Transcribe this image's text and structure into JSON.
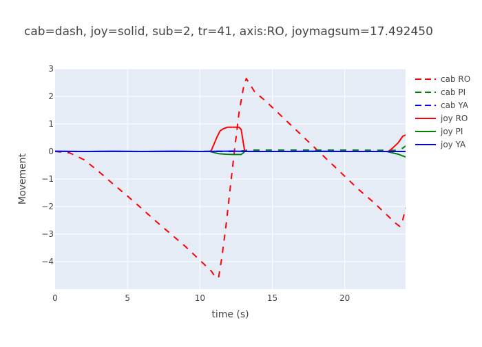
{
  "chart_data": {
    "type": "line",
    "title": "cab=dash, joy=solid, sub=2, tr=41, axis:RO, joymagsum=17.492450",
    "xlabel": "time (s)",
    "ylabel": "Movement",
    "xlim": [
      0,
      24.2
    ],
    "ylim": [
      -5,
      3
    ],
    "xticks": [
      0,
      5,
      10,
      15,
      20
    ],
    "yticks": [
      -4,
      -3,
      -2,
      -1,
      0,
      1,
      2,
      3
    ],
    "grid": true,
    "legend_position": "top-right",
    "series": [
      {
        "name": "cab RO",
        "color": "#ff0000",
        "dash": "dash",
        "x": [
          0,
          1.0,
          2.0,
          3.0,
          4.0,
          5.0,
          6.0,
          7.0,
          8.0,
          9.0,
          10.0,
          10.8,
          11.1,
          11.3,
          11.5,
          11.8,
          12.1,
          12.4,
          12.7,
          13.0,
          13.2,
          13.5,
          13.8,
          14.5,
          15.0,
          16.0,
          17.0,
          18.0,
          19.0,
          20.0,
          21.0,
          22.0,
          23.0,
          23.5,
          23.8,
          24.0,
          24.2
        ],
        "y": [
          0,
          -0.05,
          -0.3,
          -0.72,
          -1.18,
          -1.62,
          -2.08,
          -2.55,
          -3.0,
          -3.45,
          -3.95,
          -4.35,
          -4.6,
          -4.55,
          -3.9,
          -2.7,
          -1.3,
          0.1,
          1.4,
          2.3,
          2.65,
          2.4,
          2.15,
          1.85,
          1.6,
          1.1,
          0.6,
          0.1,
          -0.4,
          -0.9,
          -1.4,
          -1.85,
          -2.35,
          -2.6,
          -2.72,
          -2.5,
          -2.05
        ]
      },
      {
        "name": "cab PI",
        "color": "#008000",
        "dash": "dash",
        "x": [
          0,
          5,
          10,
          12.9,
          13.3,
          15,
          20,
          23.6,
          24.0,
          24.2
        ],
        "y": [
          0,
          0,
          0,
          0.02,
          0.05,
          0.05,
          0.05,
          0.04,
          0.12,
          0.2
        ]
      },
      {
        "name": "cab YA",
        "color": "#0000ff",
        "dash": "dash",
        "x": [
          0,
          5,
          10,
          15,
          20,
          24.2
        ],
        "y": [
          0,
          0,
          0,
          0,
          0,
          0
        ]
      },
      {
        "name": "joy RO",
        "color": "#ff0000",
        "dash": "solid",
        "x": [
          0,
          10.7,
          10.8,
          11.0,
          11.2,
          11.4,
          11.6,
          11.9,
          12.1,
          12.4,
          12.7,
          12.85,
          13.0,
          13.1,
          13.5,
          15,
          20,
          23.0,
          23.3,
          23.7,
          24.0,
          24.2
        ],
        "y": [
          0,
          0,
          0.05,
          0.3,
          0.55,
          0.75,
          0.82,
          0.88,
          0.88,
          0.88,
          0.88,
          0.8,
          0.3,
          0,
          0,
          0,
          0,
          0,
          0.12,
          0.32,
          0.55,
          0.6
        ]
      },
      {
        "name": "joy PI",
        "color": "#008000",
        "dash": "solid",
        "x": [
          0,
          10.7,
          10.9,
          11.3,
          11.8,
          12.3,
          12.85,
          13.0,
          13.1,
          13.5,
          15,
          20,
          22.9,
          23.3,
          23.7,
          24.0,
          24.2
        ],
        "y": [
          0,
          0,
          -0.03,
          -0.08,
          -0.1,
          -0.11,
          -0.11,
          -0.05,
          0,
          0,
          0,
          0,
          0,
          -0.05,
          -0.1,
          -0.16,
          -0.2
        ]
      },
      {
        "name": "joy YA",
        "color": "#0000ff",
        "dash": "solid",
        "x": [
          0,
          2,
          4,
          6,
          8,
          10,
          12,
          14,
          16,
          18,
          20,
          22,
          24.2
        ],
        "y": [
          0.01,
          0,
          0.01,
          0,
          0.01,
          0,
          0.01,
          0,
          0,
          0.01,
          0,
          0,
          0
        ]
      }
    ]
  }
}
